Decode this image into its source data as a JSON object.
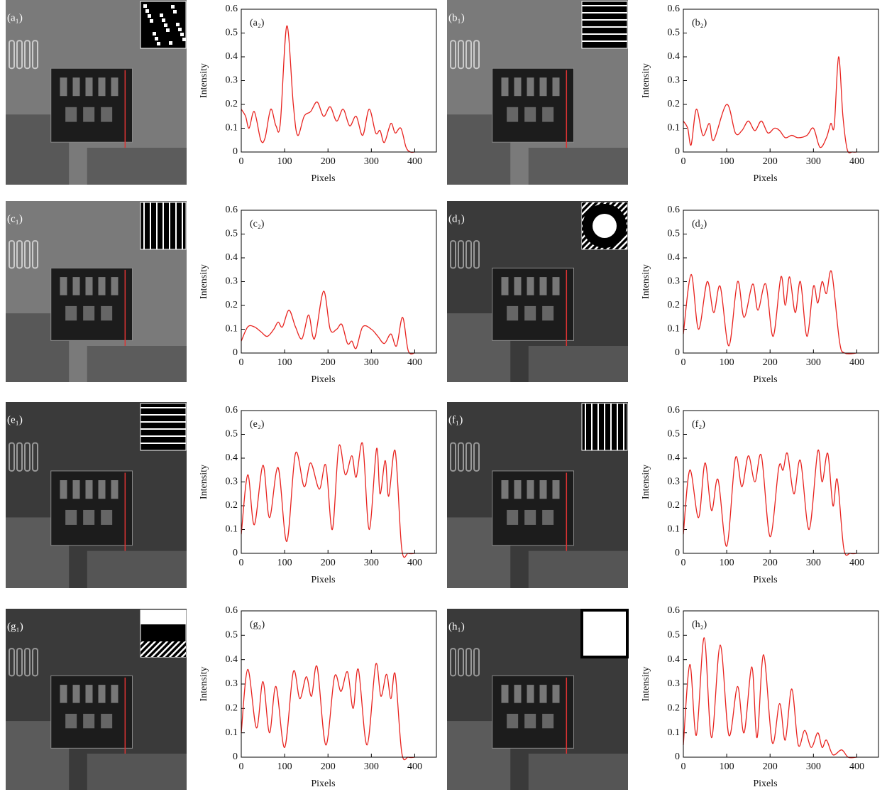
{
  "images": [
    {
      "label": "(a₁)"
    },
    {
      "label": "(b₁)"
    },
    {
      "label": "(c₁)"
    },
    {
      "label": "(d₁)"
    },
    {
      "label": "(e₁)"
    },
    {
      "label": "(f₁)"
    },
    {
      "label": "(g₁)"
    },
    {
      "label": "(h₁)"
    }
  ],
  "chart_data": [
    {
      "type": "line",
      "panel_label": "(a₂)",
      "xlabel": "Pixels",
      "ylabel": "Intensity",
      "color": "#e8231f",
      "x": [
        0,
        10,
        18,
        30,
        45,
        55,
        68,
        80,
        90,
        105,
        120,
        130,
        145,
        160,
        175,
        190,
        205,
        220,
        235,
        250,
        265,
        280,
        295,
        310,
        320,
        330,
        345,
        355,
        368,
        380,
        390,
        400
      ],
      "values": [
        0.18,
        0.15,
        0.1,
        0.17,
        0.05,
        0.06,
        0.18,
        0.11,
        0.12,
        0.53,
        0.2,
        0.07,
        0.15,
        0.17,
        0.21,
        0.15,
        0.19,
        0.13,
        0.18,
        0.11,
        0.15,
        0.07,
        0.18,
        0.08,
        0.09,
        0.04,
        0.12,
        0.08,
        0.1,
        0.02,
        0,
        0
      ],
      "xlim": [
        0,
        450
      ],
      "ylim": [
        0,
        0.6
      ],
      "xticks": [
        0,
        100,
        200,
        300,
        400
      ],
      "yticks": [
        0,
        0.1,
        0.2,
        0.3,
        0.4,
        0.5,
        0.6
      ]
    },
    {
      "type": "line",
      "panel_label": "(b₂)",
      "xlabel": "Pixels",
      "ylabel": "Intensity",
      "color": "#e8231f",
      "x": [
        0,
        10,
        18,
        30,
        45,
        60,
        70,
        100,
        120,
        135,
        150,
        165,
        180,
        195,
        210,
        222,
        235,
        250,
        265,
        285,
        300,
        315,
        330,
        340,
        348,
        358,
        368,
        378,
        390,
        400
      ],
      "values": [
        0.13,
        0.1,
        0.03,
        0.18,
        0.07,
        0.12,
        0.05,
        0.2,
        0.08,
        0.09,
        0.13,
        0.09,
        0.13,
        0.08,
        0.1,
        0.09,
        0.06,
        0.07,
        0.06,
        0.07,
        0.1,
        0.02,
        0.06,
        0.12,
        0.11,
        0.4,
        0.15,
        0.01,
        0,
        0
      ],
      "xlim": [
        0,
        450
      ],
      "ylim": [
        0,
        0.6
      ],
      "xticks": [
        0,
        100,
        200,
        300,
        400
      ],
      "yticks": [
        0,
        0.1,
        0.2,
        0.3,
        0.4,
        0.5,
        0.6
      ]
    },
    {
      "type": "line",
      "panel_label": "(c₂)",
      "xlabel": "Pixels",
      "ylabel": "Intensity",
      "color": "#e8231f",
      "x": [
        0,
        15,
        30,
        45,
        60,
        75,
        85,
        95,
        110,
        125,
        140,
        155,
        165,
        172,
        190,
        205,
        220,
        232,
        245,
        255,
        265,
        280,
        300,
        315,
        330,
        345,
        358,
        372,
        385,
        400
      ],
      "values": [
        0.05,
        0.11,
        0.11,
        0.09,
        0.07,
        0.1,
        0.13,
        0.11,
        0.18,
        0.11,
        0.06,
        0.16,
        0.07,
        0.08,
        0.26,
        0.1,
        0.1,
        0.12,
        0.04,
        0.05,
        0.02,
        0.11,
        0.1,
        0.07,
        0.04,
        0.08,
        0.03,
        0.15,
        0.01,
        0
      ],
      "xlim": [
        0,
        450
      ],
      "ylim": [
        0,
        0.6
      ],
      "xticks": [
        0,
        100,
        200,
        300,
        400
      ],
      "yticks": [
        0,
        0.1,
        0.2,
        0.3,
        0.4,
        0.5,
        0.6
      ]
    },
    {
      "type": "line",
      "panel_label": "(d₂)",
      "xlabel": "Pixels",
      "ylabel": "Intensity",
      "color": "#e8231f",
      "x": [
        0,
        18,
        35,
        55,
        70,
        85,
        105,
        125,
        140,
        160,
        172,
        190,
        207,
        225,
        235,
        245,
        258,
        270,
        285,
        300,
        310,
        320,
        330,
        342,
        360,
        372,
        400
      ],
      "values": [
        0.08,
        0.33,
        0.1,
        0.3,
        0.17,
        0.28,
        0.03,
        0.3,
        0.15,
        0.29,
        0.18,
        0.29,
        0.07,
        0.32,
        0.2,
        0.32,
        0.17,
        0.3,
        0.07,
        0.28,
        0.21,
        0.3,
        0.25,
        0.34,
        0.05,
        0,
        0
      ],
      "xlim": [
        0,
        450
      ],
      "ylim": [
        0,
        0.6
      ],
      "xticks": [
        0,
        100,
        200,
        300,
        400
      ],
      "yticks": [
        0,
        0.1,
        0.2,
        0.3,
        0.4,
        0.5,
        0.6
      ]
    },
    {
      "type": "line",
      "panel_label": "(e₂)",
      "xlabel": "Pixels",
      "ylabel": "Intensity",
      "color": "#e8231f",
      "x": [
        0,
        15,
        30,
        50,
        65,
        85,
        105,
        125,
        145,
        160,
        180,
        195,
        210,
        225,
        240,
        255,
        265,
        280,
        295,
        312,
        320,
        332,
        340,
        355,
        370,
        385,
        400
      ],
      "values": [
        0.08,
        0.33,
        0.12,
        0.37,
        0.15,
        0.36,
        0.05,
        0.42,
        0.28,
        0.38,
        0.27,
        0.37,
        0.1,
        0.45,
        0.33,
        0.41,
        0.32,
        0.46,
        0.1,
        0.44,
        0.25,
        0.39,
        0.24,
        0.43,
        0.02,
        0,
        0
      ],
      "xlim": [
        0,
        450
      ],
      "ylim": [
        0,
        0.6
      ],
      "xticks": [
        0,
        100,
        200,
        300,
        400
      ],
      "yticks": [
        0,
        0.1,
        0.2,
        0.3,
        0.4,
        0.5,
        0.6
      ]
    },
    {
      "type": "line",
      "panel_label": "(f₂)",
      "xlabel": "Pixels",
      "ylabel": "Intensity",
      "color": "#e8231f",
      "x": [
        0,
        15,
        35,
        50,
        65,
        80,
        100,
        120,
        135,
        150,
        165,
        180,
        200,
        220,
        230,
        240,
        255,
        270,
        290,
        310,
        320,
        333,
        345,
        355,
        370,
        385,
        400
      ],
      "values": [
        0.08,
        0.35,
        0.15,
        0.38,
        0.18,
        0.31,
        0.03,
        0.4,
        0.28,
        0.41,
        0.3,
        0.41,
        0.07,
        0.36,
        0.35,
        0.42,
        0.25,
        0.39,
        0.1,
        0.43,
        0.3,
        0.42,
        0.2,
        0.31,
        0.02,
        0,
        0
      ],
      "xlim": [
        0,
        450
      ],
      "ylim": [
        0,
        0.6
      ],
      "xticks": [
        0,
        100,
        200,
        300,
        400
      ],
      "yticks": [
        0,
        0.1,
        0.2,
        0.3,
        0.4,
        0.5,
        0.6
      ]
    },
    {
      "type": "line",
      "panel_label": "(g₂)",
      "xlabel": "Pixels",
      "ylabel": "Intensity",
      "color": "#e8231f",
      "x": [
        0,
        15,
        35,
        50,
        65,
        80,
        100,
        120,
        135,
        150,
        162,
        175,
        195,
        215,
        230,
        245,
        258,
        270,
        290,
        310,
        322,
        335,
        345,
        355,
        370,
        385,
        400
      ],
      "values": [
        0.1,
        0.36,
        0.12,
        0.31,
        0.1,
        0.29,
        0.04,
        0.35,
        0.24,
        0.33,
        0.25,
        0.37,
        0.05,
        0.33,
        0.27,
        0.35,
        0.2,
        0.36,
        0.05,
        0.38,
        0.25,
        0.34,
        0.24,
        0.34,
        0.02,
        0,
        0
      ],
      "xlim": [
        0,
        450
      ],
      "ylim": [
        0,
        0.6
      ],
      "xticks": [
        0,
        100,
        200,
        300,
        400
      ],
      "yticks": [
        0,
        0.1,
        0.2,
        0.3,
        0.4,
        0.5,
        0.6
      ]
    },
    {
      "type": "line",
      "panel_label": "(h₂)",
      "xlabel": "Pixels",
      "ylabel": "Intensity",
      "color": "#e8231f",
      "x": [
        0,
        15,
        30,
        48,
        65,
        85,
        105,
        125,
        140,
        158,
        170,
        185,
        205,
        222,
        235,
        250,
        265,
        280,
        295,
        310,
        320,
        330,
        345,
        365,
        380,
        400
      ],
      "values": [
        0.05,
        0.38,
        0.09,
        0.49,
        0.08,
        0.46,
        0.09,
        0.29,
        0.1,
        0.37,
        0.08,
        0.42,
        0.06,
        0.22,
        0.07,
        0.28,
        0.05,
        0.11,
        0.04,
        0.1,
        0.04,
        0.07,
        0.01,
        0.03,
        0,
        0
      ],
      "xlim": [
        0,
        450
      ],
      "ylim": [
        0,
        0.6
      ],
      "xticks": [
        0,
        100,
        200,
        300,
        400
      ],
      "yticks": [
        0,
        0.1,
        0.2,
        0.3,
        0.4,
        0.5,
        0.6
      ]
    }
  ]
}
